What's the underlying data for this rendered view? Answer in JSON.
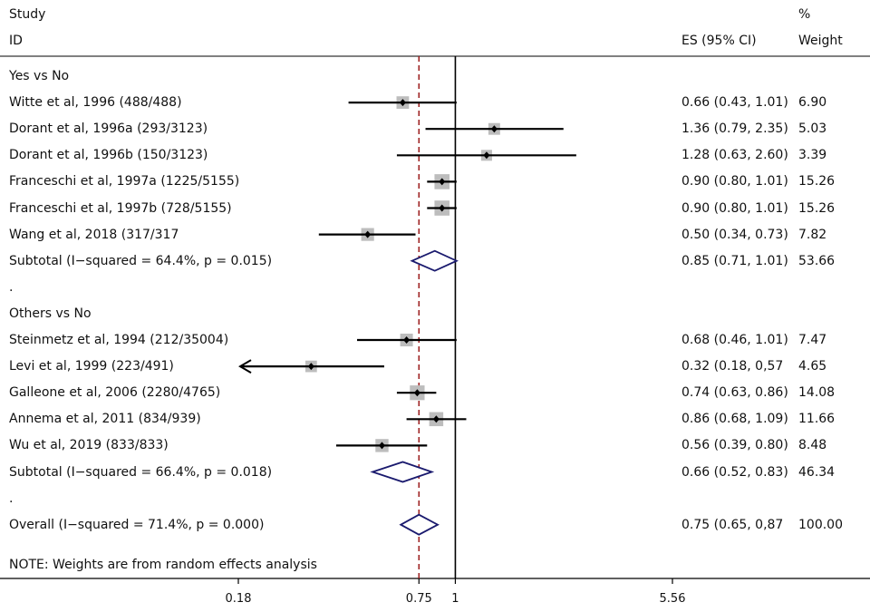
{
  "header": {
    "study_line1": "Study",
    "study_line2": "ID",
    "es_header": "ES (95% CI)",
    "weight_line1": "%",
    "weight_line2": "Weight"
  },
  "note": "NOTE: Weights are from random effects analysis",
  "chart_data": {
    "type": "forest",
    "scale": "log",
    "x_ticks": [
      {
        "value": 0.18,
        "label": "0.18"
      },
      {
        "value": 0.75,
        "label": "0.75"
      },
      {
        "value": 1,
        "label": "1"
      },
      {
        "value": 5.56,
        "label": "5.56"
      }
    ],
    "overall_effect_line": 0.75,
    "null_line": 1,
    "rows": [
      {
        "kind": "heading",
        "label": "Yes vs No"
      },
      {
        "kind": "study",
        "label": "Witte et al, 1996 (488/488)",
        "es": 0.66,
        "lo": 0.43,
        "hi": 1.01,
        "es_text": "0.66 (0.43, 1.01)",
        "weight": 6.9,
        "weight_text": "6.90"
      },
      {
        "kind": "study",
        "label": "Dorant et al, 1996a (293/3123)",
        "es": 1.36,
        "lo": 0.79,
        "hi": 2.35,
        "es_text": "1.36 (0.79, 2.35)",
        "weight": 5.03,
        "weight_text": "5.03"
      },
      {
        "kind": "study",
        "label": "Dorant et al, 1996b (150/3123)",
        "es": 1.28,
        "lo": 0.63,
        "hi": 2.6,
        "es_text": "1.28 (0.63, 2.60)",
        "weight": 3.39,
        "weight_text": "3.39"
      },
      {
        "kind": "study",
        "label": "Franceschi et al, 1997a (1225/5155)",
        "es": 0.9,
        "lo": 0.8,
        "hi": 1.01,
        "es_text": "0.90 (0.80, 1.01)",
        "weight": 15.26,
        "weight_text": "15.26"
      },
      {
        "kind": "study",
        "label": "Franceschi et al, 1997b (728/5155)",
        "es": 0.9,
        "lo": 0.8,
        "hi": 1.01,
        "es_text": "0.90 (0.80, 1.01)",
        "weight": 15.26,
        "weight_text": "15.26"
      },
      {
        "kind": "study",
        "label": "Wang et al, 2018 (317/317",
        "es": 0.5,
        "lo": 0.34,
        "hi": 0.73,
        "es_text": "0.50 (0.34, 0.73)",
        "weight": 7.82,
        "weight_text": "7.82"
      },
      {
        "kind": "subtotal",
        "label": "Subtotal  (I−squared = 64.4%, p = 0.015)",
        "es": 0.85,
        "lo": 0.71,
        "hi": 1.01,
        "es_text": "0.85 (0.71, 1.01)",
        "weight": 53.66,
        "weight_text": "53.66"
      },
      {
        "kind": "spacer",
        "label": "."
      },
      {
        "kind": "heading",
        "label": "Others vs No"
      },
      {
        "kind": "study",
        "label": "Steinmetz et al, 1994 (212/35004)",
        "es": 0.68,
        "lo": 0.46,
        "hi": 1.01,
        "es_text": "0.68 (0.46, 1.01)",
        "weight": 7.47,
        "weight_text": "7.47"
      },
      {
        "kind": "study",
        "label": "Levi et al, 1999 (223/491)",
        "es": 0.32,
        "lo": 0.18,
        "hi": 0.57,
        "es_text": "0.32 (0.18, 0,57",
        "weight": 4.65,
        "weight_text": "4.65",
        "arrow_left": true
      },
      {
        "kind": "study",
        "label": "Galleone et al, 2006 (2280/4765)",
        "es": 0.74,
        "lo": 0.63,
        "hi": 0.86,
        "es_text": "0.74 (0.63, 0.86)",
        "weight": 14.08,
        "weight_text": "14.08"
      },
      {
        "kind": "study",
        "label": "Annema et al, 2011 (834/939)",
        "es": 0.86,
        "lo": 0.68,
        "hi": 1.09,
        "es_text": "0.86 (0.68, 1.09)",
        "weight": 11.66,
        "weight_text": "11.66"
      },
      {
        "kind": "study",
        "label": "Wu et al, 2019 (833/833)",
        "es": 0.56,
        "lo": 0.39,
        "hi": 0.8,
        "es_text": "0.56 (0.39, 0.80)",
        "weight": 8.48,
        "weight_text": "8.48"
      },
      {
        "kind": "subtotal",
        "label": "Subtotal  (I−squared = 66.4%, p = 0.018)",
        "es": 0.66,
        "lo": 0.52,
        "hi": 0.83,
        "es_text": "0.66 (0.52, 0.83)",
        "weight": 46.34,
        "weight_text": "46.34"
      },
      {
        "kind": "spacer",
        "label": "."
      },
      {
        "kind": "overall",
        "label": "Overall  (I−squared = 71.4%, p = 0.000)",
        "es": 0.75,
        "lo": 0.65,
        "hi": 0.87,
        "es_text": "0.75 (0.65, 0,87",
        "weight": 100.0,
        "weight_text": "100.00"
      }
    ]
  }
}
